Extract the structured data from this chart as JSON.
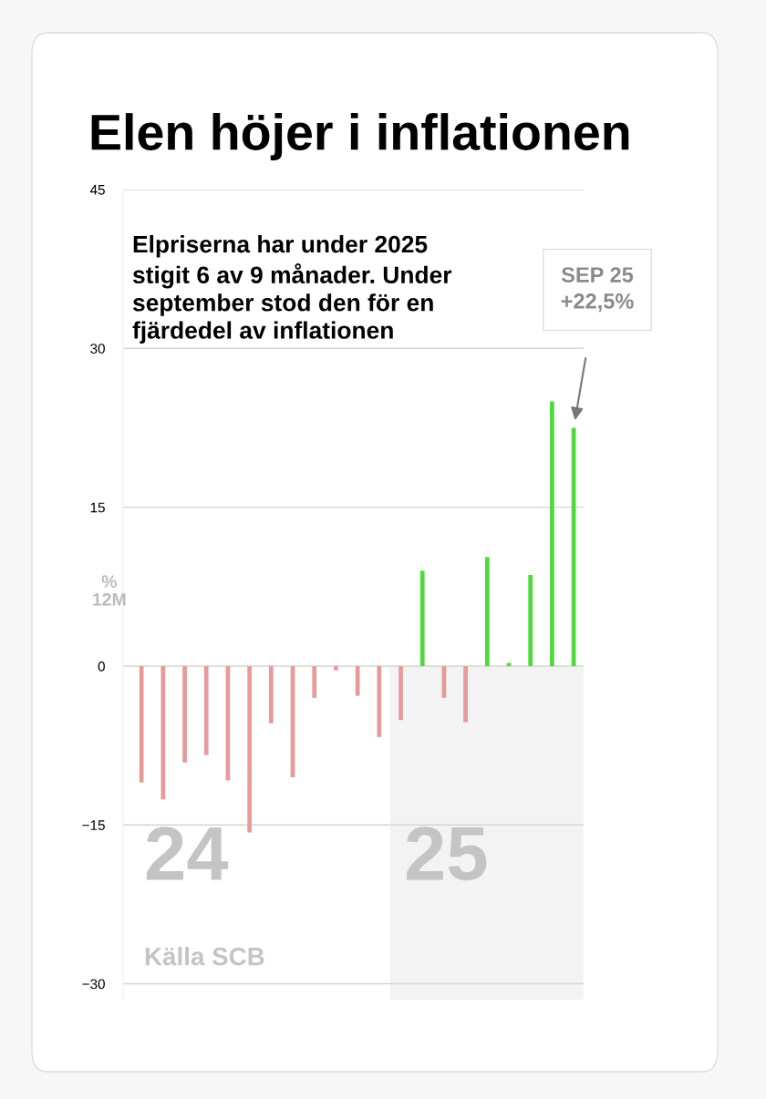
{
  "chart_data": {
    "type": "bar",
    "title": "Elen höjer i inflationen",
    "subtitle": "Elpriserna har under 2025\nstigit 6 av 9 månader. Under\nseptember stod den för en\nfjärdedel av inflationen",
    "ylabel": "%\n12M",
    "categories": [
      null,
      null,
      null,
      null,
      null,
      null,
      null,
      null,
      null,
      null,
      null,
      null,
      null,
      null,
      null,
      null,
      null,
      null,
      null,
      null,
      null
    ],
    "values": [
      -11.0,
      -12.6,
      -9.1,
      -8.4,
      -10.8,
      -15.7,
      -5.4,
      -10.5,
      -3.0,
      -0.4,
      -2.8,
      -6.7,
      -5.1,
      9.0,
      -3.0,
      -5.3,
      10.3,
      0.3,
      8.6,
      25.0,
      22.5
    ],
    "colors": [
      "#e79a9a",
      "#e79a9a",
      "#e79a9a",
      "#e79a9a",
      "#e79a9a",
      "#e79a9a",
      "#e79a9a",
      "#e79a9a",
      "#e79a9a",
      "#e79a9a",
      "#e79a9a",
      "#e79a9a",
      "#e79a9a",
      "#4fd93b",
      "#e79a9a",
      "#e79a9a",
      "#4fd93b",
      "#4fd93b",
      "#4fd93b",
      "#4fd93b",
      "#4fd93b"
    ],
    "ylim": [
      -31.5,
      45
    ],
    "yticks": [
      {
        "value": -30,
        "label": "−30"
      },
      {
        "value": -15,
        "label": "−15"
      },
      0,
      15,
      30,
      45
    ],
    "tick_labels": "y",
    "grid": "y",
    "annotations": [
      "SEP 25\n+22,5%",
      "24",
      "25",
      "Källa SCB"
    ]
  }
}
